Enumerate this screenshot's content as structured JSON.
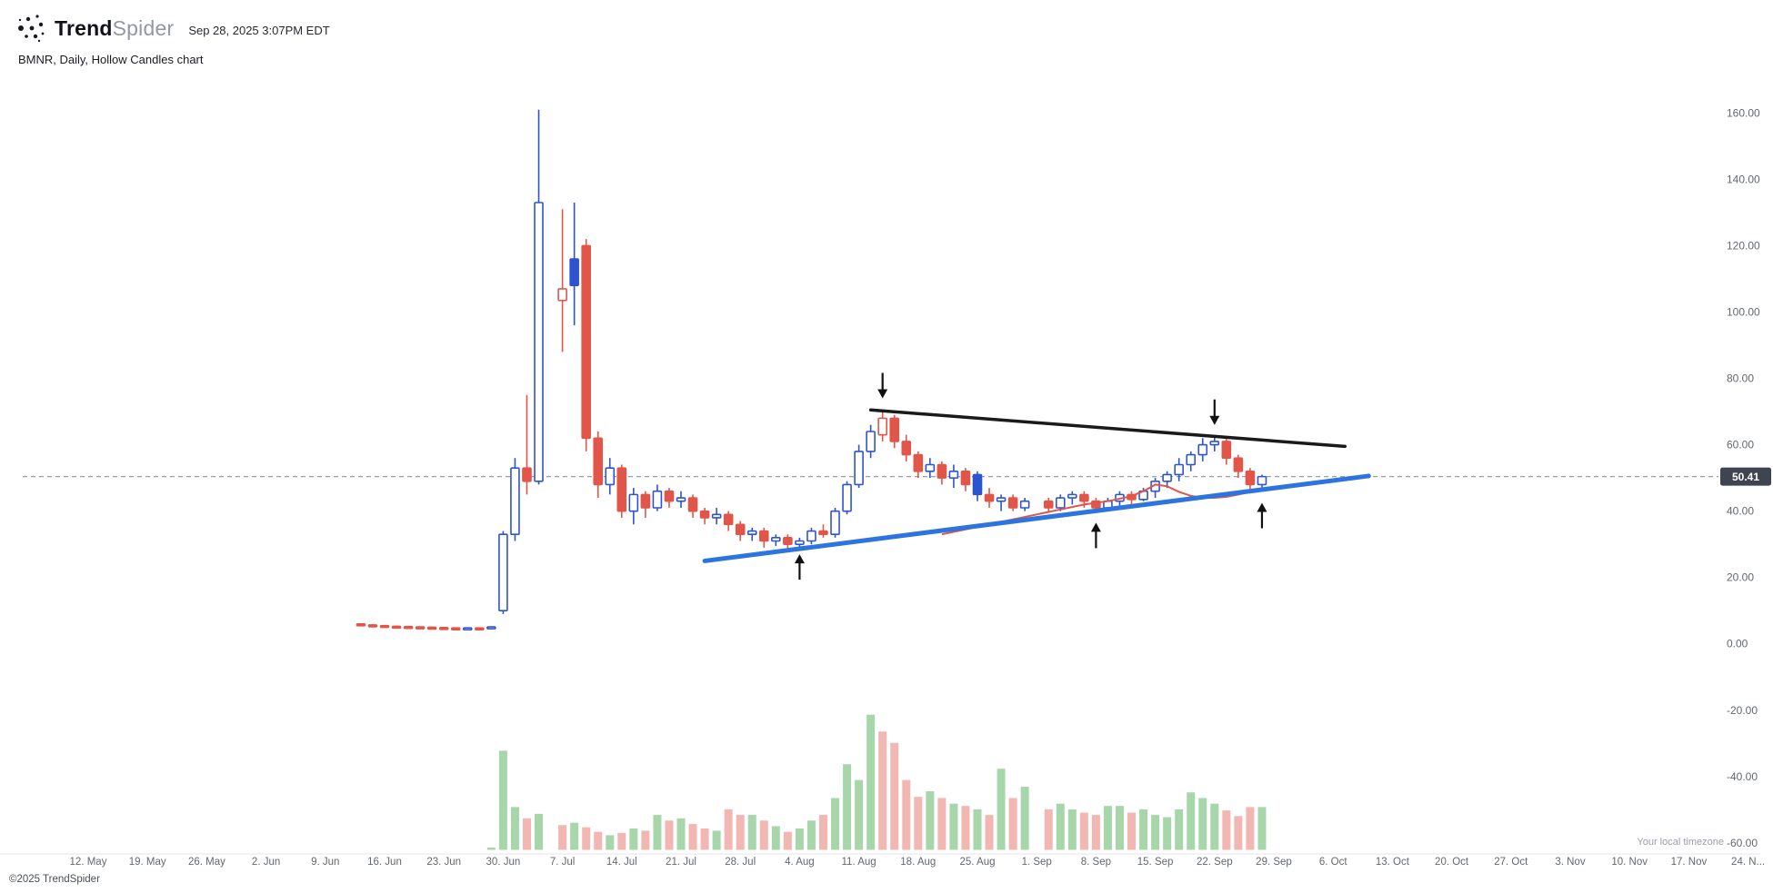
{
  "header": {
    "brand_bold": "Trend",
    "brand_light": "Spider",
    "timestamp": "Sep 28, 2025 3:07PM EDT",
    "symbol_info": "BMNR, Daily, Hollow Candles chart"
  },
  "footer": {
    "copyright": "©2025 TrendSpider"
  },
  "axis_note": "Your local timezone",
  "colors": {
    "up": "#2e53cf",
    "down": "#e25549",
    "volume_up": "#a8d6ab",
    "volume_down": "#f2b6b3",
    "current_price_line": "#9aa0a6",
    "badge_bg": "#3f4550",
    "badge_text": "#ffffff",
    "axis_text": "#62686e",
    "arrow": "#111111",
    "axis_line": "#e4e6e8"
  },
  "chart_data": {
    "type": "candlestick",
    "symbol": "BMNR",
    "timeframe": "Daily",
    "style": "Hollow Candles",
    "current_price": 50.41,
    "y_axis": {
      "min": -60,
      "max": 160,
      "tick_step": 20,
      "ticks": [
        160,
        140,
        120,
        100,
        80,
        60,
        40,
        20,
        0,
        -20,
        -40,
        -60
      ]
    },
    "x_labels": [
      "12. May",
      "19. May",
      "26. May",
      "2. Jun",
      "9. Jun",
      "16. Jun",
      "23. Jun",
      "30. Jun",
      "7. Jul",
      "14. Jul",
      "21. Jul",
      "28. Jul",
      "4. Aug",
      "11. Aug",
      "18. Aug",
      "25. Aug",
      "1. Sep",
      "8. Sep",
      "15. Sep",
      "22. Sep",
      "29. Sep",
      "6. Oct",
      "13. Oct",
      "20. Oct",
      "27. Oct",
      "3. Nov",
      "10. Nov",
      "17. Nov",
      "24. N..."
    ],
    "candle_columns": [
      "date",
      "x_index",
      "open",
      "high",
      "low",
      "close",
      "color(b=blue,r=red)",
      "body(h=hollow,f=filled)",
      "volume"
    ],
    "candles": [
      [
        "Jun 12",
        23,
        6.0,
        6.2,
        5.6,
        5.7,
        "r",
        "f",
        0
      ],
      [
        "Jun 13",
        24,
        5.7,
        5.9,
        5.4,
        5.5,
        "r",
        "f",
        0
      ],
      [
        "Jun 16",
        25,
        5.5,
        5.7,
        5.2,
        5.3,
        "r",
        "f",
        0
      ],
      [
        "Jun 17",
        26,
        5.3,
        5.5,
        5.1,
        5.2,
        "r",
        "f",
        0
      ],
      [
        "Jun 18",
        27,
        5.2,
        5.4,
        5.0,
        5.1,
        "r",
        "f",
        0
      ],
      [
        "Jun 19",
        28,
        5.1,
        5.3,
        4.9,
        5.0,
        "r",
        "f",
        0
      ],
      [
        "Jun 20",
        29,
        5.0,
        5.2,
        4.8,
        4.9,
        "r",
        "f",
        0
      ],
      [
        "Jun 23",
        30,
        4.9,
        5.1,
        4.7,
        4.8,
        "r",
        "f",
        0
      ],
      [
        "Jun 24",
        31,
        4.8,
        5.0,
        4.6,
        4.7,
        "r",
        "f",
        0
      ],
      [
        "Jun 25",
        32,
        4.7,
        4.9,
        4.5,
        4.8,
        "b",
        "h",
        0
      ],
      [
        "Jun 26",
        33,
        4.8,
        5.0,
        4.6,
        4.7,
        "r",
        "f",
        0
      ],
      [
        "Jun 27",
        34,
        4.7,
        5.3,
        4.6,
        5.1,
        "b",
        "h",
        2
      ],
      [
        "Jun 30",
        35,
        10,
        34,
        9,
        33,
        "b",
        "h",
        88
      ],
      [
        "Jul 1",
        36,
        33,
        56,
        31,
        53,
        "b",
        "h",
        38
      ],
      [
        "Jul 2",
        37,
        53,
        75,
        45,
        49,
        "r",
        "f",
        28
      ],
      [
        "Jul 3",
        38,
        49,
        161,
        48,
        133,
        "b",
        "h",
        32
      ],
      [
        "Jul 7",
        40,
        103.5,
        131,
        88,
        107,
        "r",
        "h",
        22
      ],
      [
        "Jul 8",
        41,
        116,
        133,
        96,
        108,
        "b",
        "f",
        24
      ],
      [
        "Jul 9",
        42,
        120,
        122,
        58,
        62,
        "r",
        "f",
        20
      ],
      [
        "Jul 10",
        43,
        62,
        64,
        44,
        48,
        "r",
        "f",
        16
      ],
      [
        "Jul 11",
        44,
        48,
        56,
        45,
        53,
        "b",
        "h",
        13
      ],
      [
        "Jul 14",
        45,
        53,
        54,
        38,
        40,
        "r",
        "f",
        15
      ],
      [
        "Jul 15",
        46,
        40,
        47,
        36,
        45,
        "b",
        "h",
        19
      ],
      [
        "Jul 16",
        47,
        45,
        46,
        38,
        41,
        "r",
        "f",
        17
      ],
      [
        "Jul 17",
        48,
        41,
        48,
        40,
        46,
        "b",
        "h",
        31
      ],
      [
        "Jul 18",
        49,
        46,
        47,
        41,
        43,
        "r",
        "f",
        26
      ],
      [
        "Jul 21",
        50,
        43,
        46,
        41,
        44,
        "b",
        "h",
        28
      ],
      [
        "Jul 22",
        51,
        44,
        45,
        38,
        40,
        "r",
        "f",
        23
      ],
      [
        "Jul 23",
        52,
        40,
        41,
        36,
        38,
        "r",
        "f",
        19
      ],
      [
        "Jul 24",
        53,
        38,
        41,
        36,
        39,
        "b",
        "h",
        17
      ],
      [
        "Jul 25",
        54,
        39,
        40,
        34,
        36,
        "r",
        "f",
        36
      ],
      [
        "Jul 28",
        55,
        36,
        37,
        31,
        33,
        "r",
        "f",
        31
      ],
      [
        "Jul 29",
        56,
        33,
        35,
        31,
        34,
        "b",
        "h",
        31
      ],
      [
        "Jul 30",
        57,
        34,
        35,
        29,
        31,
        "r",
        "f",
        26
      ],
      [
        "Jul 31",
        58,
        31,
        33,
        29.5,
        32,
        "b",
        "h",
        21
      ],
      [
        "Aug 1",
        59,
        32,
        33,
        28.5,
        30,
        "r",
        "f",
        16
      ],
      [
        "Aug 4",
        60,
        30,
        32,
        29,
        31,
        "b",
        "h",
        19
      ],
      [
        "Aug 5",
        61,
        31,
        35,
        30,
        34,
        "b",
        "h",
        26
      ],
      [
        "Aug 6",
        62,
        34,
        36,
        32,
        33,
        "r",
        "f",
        31
      ],
      [
        "Aug 7",
        63,
        33,
        41,
        32,
        40,
        "b",
        "h",
        46
      ],
      [
        "Aug 8",
        64,
        40,
        49,
        39,
        48,
        "b",
        "h",
        76
      ],
      [
        "Aug 11",
        65,
        48,
        60,
        47,
        58,
        "b",
        "h",
        62
      ],
      [
        "Aug 12",
        66,
        58,
        66,
        56,
        64,
        "b",
        "h",
        120
      ],
      [
        "Aug 13",
        67,
        63,
        70.5,
        61,
        68,
        "r",
        "h",
        105
      ],
      [
        "Aug 14",
        68,
        68,
        69,
        59,
        61,
        "r",
        "f",
        95
      ],
      [
        "Aug 15",
        69,
        61,
        63,
        55,
        57,
        "r",
        "f",
        62
      ],
      [
        "Aug 18",
        70,
        57,
        58,
        50,
        52,
        "r",
        "f",
        47
      ],
      [
        "Aug 19",
        71,
        52,
        56,
        50,
        54,
        "b",
        "h",
        52
      ],
      [
        "Aug 20",
        72,
        54,
        55,
        48,
        50,
        "r",
        "f",
        46
      ],
      [
        "Aug 21",
        73,
        50,
        54,
        47,
        52,
        "b",
        "h",
        41
      ],
      [
        "Aug 22",
        74,
        52,
        53,
        46,
        48,
        "r",
        "f",
        39
      ],
      [
        "Aug 25",
        75,
        51,
        52,
        43,
        45,
        "b",
        "f",
        36
      ],
      [
        "Aug 26",
        76,
        45,
        47,
        41,
        43,
        "r",
        "f",
        31
      ],
      [
        "Aug 27",
        77,
        43,
        45,
        40,
        44,
        "b",
        "h",
        72
      ],
      [
        "Aug 28",
        78,
        44,
        45,
        40,
        41,
        "r",
        "f",
        46
      ],
      [
        "Aug 29",
        79,
        41,
        44,
        40,
        43,
        "b",
        "h",
        56
      ],
      [
        "Sep 2",
        81,
        43,
        44,
        39.5,
        41,
        "r",
        "f",
        36
      ],
      [
        "Sep 3",
        82,
        41,
        45,
        40,
        44,
        "b",
        "h",
        41
      ],
      [
        "Sep 4",
        83,
        44,
        46,
        42,
        45,
        "b",
        "h",
        36
      ],
      [
        "Sep 5",
        84,
        45,
        46,
        41,
        43,
        "r",
        "f",
        33
      ],
      [
        "Sep 8",
        85,
        43,
        44,
        40,
        41,
        "r",
        "f",
        31
      ],
      [
        "Sep 9",
        86,
        41,
        44,
        40,
        43,
        "b",
        "h",
        39
      ],
      [
        "Sep 10",
        87,
        43,
        46,
        41,
        45,
        "b",
        "h",
        39
      ],
      [
        "Sep 11",
        88,
        45,
        46,
        42,
        43.5,
        "r",
        "f",
        33
      ],
      [
        "Sep 12",
        89,
        43.5,
        47,
        43,
        46,
        "b",
        "h",
        36
      ],
      [
        "Sep 15",
        90,
        46,
        50,
        44,
        49,
        "b",
        "h",
        31
      ],
      [
        "Sep 16",
        91,
        49,
        52,
        47,
        51,
        "b",
        "h",
        29
      ],
      [
        "Sep 17",
        92,
        51,
        56,
        49,
        54,
        "b",
        "h",
        36
      ],
      [
        "Sep 18",
        93,
        54,
        58,
        52,
        57,
        "b",
        "h",
        51
      ],
      [
        "Sep 19",
        94,
        57,
        62,
        55,
        60,
        "b",
        "h",
        46
      ],
      [
        "Sep 22",
        95,
        60,
        62.5,
        58,
        61,
        "b",
        "h",
        41
      ],
      [
        "Sep 23",
        96,
        61,
        62,
        54,
        56,
        "r",
        "f",
        35
      ],
      [
        "Sep 24",
        97,
        56,
        57,
        50,
        52,
        "r",
        "f",
        30
      ],
      [
        "Sep 25",
        98,
        52,
        53,
        46.5,
        48,
        "r",
        "f",
        38
      ],
      [
        "Sep 26",
        99,
        48,
        51,
        46,
        50.41,
        "b",
        "h",
        38
      ]
    ],
    "trendlines": [
      {
        "name": "descending-resistance",
        "x_index_start": 66,
        "price_start": 70.5,
        "x_index_end": 106,
        "price_end": 59.5,
        "color": "#1a1a1a",
        "width": 3.5
      },
      {
        "name": "ascending-support",
        "x_index_start": 52,
        "price_start": 25,
        "x_index_end": 108,
        "price_end": 50.6,
        "color": "#2c74e0",
        "width": 5
      }
    ],
    "ma_line": {
      "name": "moving-average",
      "color": "#e0544a",
      "width": 2,
      "points": [
        [
          72,
          33
        ],
        [
          74,
          34.5
        ],
        [
          76,
          36
        ],
        [
          78,
          37.5
        ],
        [
          80,
          39
        ],
        [
          82,
          40.5
        ],
        [
          84,
          42
        ],
        [
          86,
          43
        ],
        [
          88,
          44.5
        ],
        [
          89,
          46
        ],
        [
          90,
          48
        ],
        [
          91,
          47.5
        ],
        [
          92,
          45.8
        ],
        [
          93,
          44.6
        ],
        [
          94,
          44
        ],
        [
          95,
          44
        ],
        [
          96,
          44.3
        ],
        [
          97,
          45
        ],
        [
          98,
          45.8
        ],
        [
          99,
          46.5
        ],
        [
          100,
          47
        ]
      ]
    },
    "arrows": [
      {
        "date": "Aug 13",
        "x_index": 67,
        "direction": "down",
        "tip_price": 74
      },
      {
        "date": "Sep 22",
        "x_index": 95,
        "direction": "down",
        "tip_price": 66
      },
      {
        "date": "Aug 4",
        "x_index": 60,
        "direction": "up",
        "tip_price": 27
      },
      {
        "date": "Sep 8",
        "x_index": 85,
        "direction": "up",
        "tip_price": 36.5
      },
      {
        "date": "Sep 26",
        "x_index": 99,
        "direction": "up",
        "tip_price": 42.5
      }
    ]
  }
}
